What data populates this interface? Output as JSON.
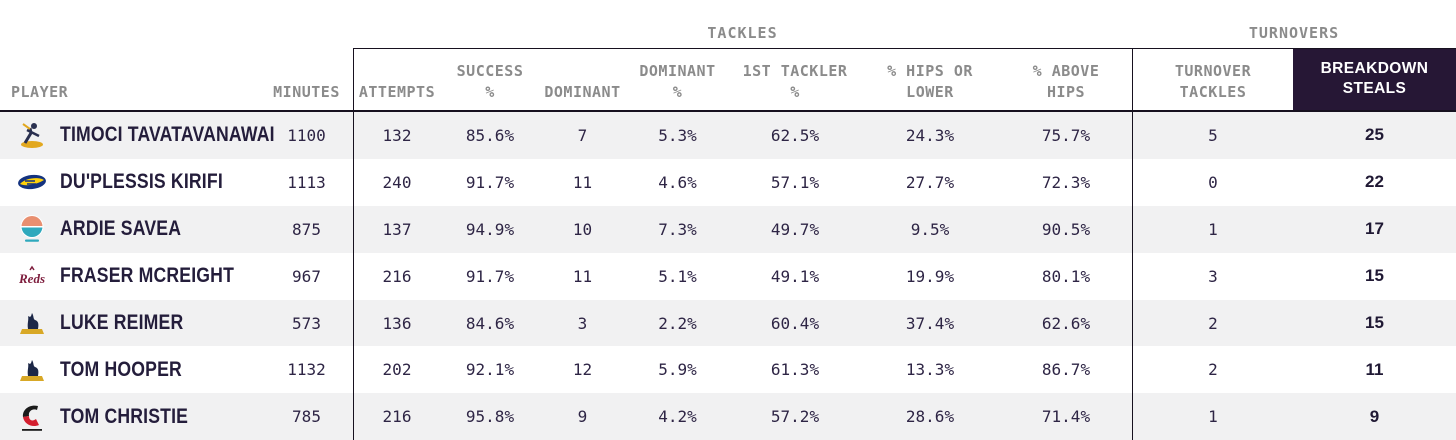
{
  "colors": {
    "header_text": "#8b8b8b",
    "data_text": "#2e2545",
    "player_name_text": "#241d3b",
    "steals_header_bg": "#261735",
    "steals_header_text": "#ffffff",
    "row_alt_bg": "#f1f1f2",
    "row_bg": "#ffffff",
    "border": "#17111f"
  },
  "chart_data": {
    "type": "table",
    "column_groups": [
      {
        "label": "TACKLES",
        "columns": [
          "attempts",
          "success_pct",
          "dominant",
          "dominant_pct",
          "first_tackler_pct",
          "hips_or_lower_pct",
          "above_hips_pct"
        ]
      },
      {
        "label": "TURNOVERS",
        "columns": [
          "turnover_tackles",
          "breakdown_steals"
        ]
      }
    ],
    "columns": [
      {
        "key": "player",
        "label": "PLAYER",
        "lines": [
          "PLAYER"
        ]
      },
      {
        "key": "minutes",
        "label": "MINUTES",
        "lines": [
          "MINUTES"
        ]
      },
      {
        "key": "attempts",
        "label": "ATTEMPTS",
        "lines": [
          "ATTEMPTS"
        ],
        "group": "TACKLES",
        "group_start": true
      },
      {
        "key": "success_pct",
        "label": "SUCCESS %",
        "lines": [
          "SUCCESS",
          "%"
        ],
        "group": "TACKLES"
      },
      {
        "key": "dominant",
        "label": "DOMINANT",
        "lines": [
          "DOMINANT"
        ],
        "group": "TACKLES"
      },
      {
        "key": "dominant_pct",
        "label": "DOMINANT %",
        "lines": [
          "DOMINANT",
          "%"
        ],
        "group": "TACKLES"
      },
      {
        "key": "first_tackler_pct",
        "label": "1ST TACKLER %",
        "lines": [
          "1ST TACKLER",
          "%"
        ],
        "group": "TACKLES"
      },
      {
        "key": "hips_or_lower_pct",
        "label": "% HIPS OR LOWER",
        "lines": [
          "% HIPS OR",
          "LOWER"
        ],
        "group": "TACKLES"
      },
      {
        "key": "above_hips_pct",
        "label": "% ABOVE HIPS",
        "lines": [
          "% ABOVE",
          "HIPS"
        ],
        "group": "TACKLES"
      },
      {
        "key": "turnover_tackles",
        "label": "TURNOVER TACKLES",
        "lines": [
          "TURNOVER",
          "TACKLES"
        ],
        "group": "TURNOVERS",
        "group_start": true
      },
      {
        "key": "breakdown_steals",
        "label": "BREAKDOWN STEALS",
        "lines": [
          "BREAKDOWN",
          "STEALS"
        ],
        "group": "TURNOVERS",
        "highlighted": true
      }
    ],
    "rows": [
      {
        "team": "highlanders",
        "player": "TIMOCI TAVATAVANAWAI",
        "minutes": "1100",
        "attempts": "132",
        "success_pct": "85.6%",
        "dominant": "7",
        "dominant_pct": "5.3%",
        "first_tackler_pct": "62.5%",
        "hips_or_lower_pct": "24.3%",
        "above_hips_pct": "75.7%",
        "turnover_tackles": "5",
        "breakdown_steals": "25"
      },
      {
        "team": "hurricanes",
        "player": "DU'PLESSIS KIRIFI",
        "minutes": "1113",
        "attempts": "240",
        "success_pct": "91.7%",
        "dominant": "11",
        "dominant_pct": "4.6%",
        "first_tackler_pct": "57.1%",
        "hips_or_lower_pct": "27.7%",
        "above_hips_pct": "72.3%",
        "turnover_tackles": "0",
        "breakdown_steals": "22"
      },
      {
        "team": "moana-pasifika",
        "player": "ARDIE SAVEA",
        "minutes": "875",
        "attempts": "137",
        "success_pct": "94.9%",
        "dominant": "10",
        "dominant_pct": "7.3%",
        "first_tackler_pct": "49.7%",
        "hips_or_lower_pct": "9.5%",
        "above_hips_pct": "90.5%",
        "turnover_tackles": "1",
        "breakdown_steals": "17"
      },
      {
        "team": "reds",
        "player": "FRASER MCREIGHT",
        "minutes": "967",
        "attempts": "216",
        "success_pct": "91.7%",
        "dominant": "11",
        "dominant_pct": "5.1%",
        "first_tackler_pct": "49.1%",
        "hips_or_lower_pct": "19.9%",
        "above_hips_pct": "80.1%",
        "turnover_tackles": "3",
        "breakdown_steals": "15"
      },
      {
        "team": "brumbies",
        "player": "LUKE REIMER",
        "minutes": "573",
        "attempts": "136",
        "success_pct": "84.6%",
        "dominant": "3",
        "dominant_pct": "2.2%",
        "first_tackler_pct": "60.4%",
        "hips_or_lower_pct": "37.4%",
        "above_hips_pct": "62.6%",
        "turnover_tackles": "2",
        "breakdown_steals": "15"
      },
      {
        "team": "brumbies",
        "player": "TOM HOOPER",
        "minutes": "1132",
        "attempts": "202",
        "success_pct": "92.1%",
        "dominant": "12",
        "dominant_pct": "5.9%",
        "first_tackler_pct": "61.3%",
        "hips_or_lower_pct": "13.3%",
        "above_hips_pct": "86.7%",
        "turnover_tackles": "2",
        "breakdown_steals": "11"
      },
      {
        "team": "crusaders",
        "player": "TOM CHRISTIE",
        "minutes": "785",
        "attempts": "216",
        "success_pct": "95.8%",
        "dominant": "9",
        "dominant_pct": "4.2%",
        "first_tackler_pct": "57.2%",
        "hips_or_lower_pct": "28.6%",
        "above_hips_pct": "71.4%",
        "turnover_tackles": "1",
        "breakdown_steals": "9"
      }
    ],
    "sorted_by": "breakdown_steals",
    "sort_order": "descending"
  }
}
